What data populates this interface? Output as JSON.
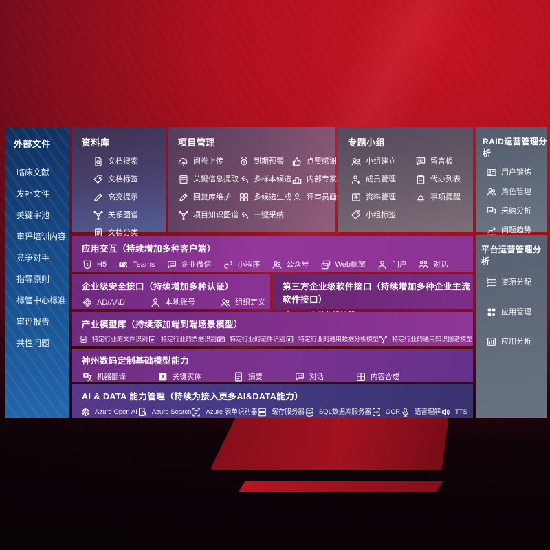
{
  "colors": {
    "accent_red": "#b50e1c",
    "sidebar_blue": "#1b62a8",
    "panel_purple": "#8a3294",
    "slate_grey": "#66707e",
    "indigo": "#3f3880"
  },
  "left_sidebar": {
    "title": "外部文件",
    "items": [
      "临床文献",
      "发补文件",
      "关键字池",
      "审评培训内容",
      "竞争对手",
      "指导原则",
      "标管中心标准",
      "审评报告",
      "共性问题"
    ]
  },
  "top_panels": [
    {
      "title": "资料库",
      "columns": [
        [
          {
            "label": "文档搜索",
            "icon": "doc-search"
          },
          {
            "label": "文档标签",
            "icon": "tag"
          },
          {
            "label": "高亮提示",
            "icon": "pen"
          },
          {
            "label": "关系图谱",
            "icon": "network"
          },
          {
            "label": "文档分类",
            "icon": "doc"
          }
        ]
      ]
    },
    {
      "title": "项目管理",
      "columns": [
        [
          {
            "label": "问卷上传",
            "icon": "cloud-up"
          },
          {
            "label": "关键信息提取",
            "icon": "form"
          },
          {
            "label": "回复库维护",
            "icon": "pen"
          },
          {
            "label": "项目知识图谱",
            "icon": "network"
          }
        ],
        [
          {
            "label": "到期预警",
            "icon": "alarm"
          },
          {
            "label": "多样本候选",
            "icon": "reply"
          },
          {
            "label": "多候选生成",
            "icon": "grid4"
          },
          {
            "label": "一键采纳",
            "icon": "reply"
          }
        ],
        [
          {
            "label": "点赞感谢",
            "icon": "thumb"
          },
          {
            "label": "内部专家排名",
            "icon": "podium"
          },
          {
            "label": "评审员画像",
            "icon": "person"
          }
        ]
      ]
    },
    {
      "title": "专题小组",
      "columns": [
        [
          {
            "label": "小组建立",
            "icon": "people"
          },
          {
            "label": "成员管理",
            "icon": "person-add"
          },
          {
            "label": "资料管理",
            "icon": "box"
          },
          {
            "label": "小组标签",
            "icon": "tag"
          }
        ],
        [
          {
            "label": "留言板",
            "icon": "bbs"
          },
          {
            "label": "代办列表",
            "icon": "clipboard"
          },
          {
            "label": "事项提醒",
            "icon": "bell"
          }
        ]
      ]
    }
  ],
  "right_panels": [
    {
      "title": "RAID运营管理分析",
      "items": [
        {
          "label": "用户锻炼",
          "icon": "card"
        },
        {
          "label": "角色管理",
          "icon": "people"
        },
        {
          "label": "采纳分析",
          "icon": "chat-qa"
        },
        {
          "label": "问题趋势",
          "icon": "chart"
        }
      ]
    },
    {
      "title": "平台运营管理分析",
      "items": [
        {
          "label": "资源分配",
          "icon": "list"
        },
        {
          "label": "应用管理",
          "icon": "grid-apps"
        },
        {
          "label": "应用分析",
          "icon": "chart-box"
        }
      ]
    }
  ],
  "rows": [
    {
      "title": "应用交互（持续增加多种客户端）",
      "items": [
        {
          "label": "H5",
          "icon": "h5"
        },
        {
          "label": "Teams",
          "icon": "teams"
        },
        {
          "label": "企业微信",
          "icon": "chat-dots"
        },
        {
          "label": "小程序",
          "icon": "miniprogram"
        },
        {
          "label": "公众号",
          "icon": "people"
        },
        {
          "label": "Web飘窗",
          "icon": "window"
        },
        {
          "label": "门户",
          "icon": "person"
        },
        {
          "label": "对话",
          "icon": "people-talk"
        }
      ]
    },
    {
      "title": "企业级安全接口（持续增加多种认证）",
      "items": [
        {
          "label": "AD/AAD",
          "icon": "diamond"
        },
        {
          "label": "本地账号",
          "icon": "person"
        },
        {
          "label": "组织定义",
          "icon": "people"
        }
      ]
    },
    {
      "title": "第三方企业级软件接口（持续增加多种企业主流软件接口）",
      "items": [
        {
          "label": "API自动化设计器",
          "icon": "gear"
        }
      ]
    },
    {
      "title": "产业模型库（持续添加端到端场景模型）",
      "items": [
        {
          "label": "特定行业的文件识别",
          "icon": "doc"
        },
        {
          "label": "特定行业的票据识别",
          "icon": "form"
        },
        {
          "label": "特定行业的证件识别",
          "icon": "card"
        },
        {
          "label": "特定行业的通用数据分析模型",
          "icon": "chart-box"
        },
        {
          "label": "特定行业的通用知识图谱模型",
          "icon": "network"
        }
      ]
    },
    {
      "title": "神州数码定制基础模型能力",
      "items": [
        {
          "label": "机器翻译",
          "icon": "translate"
        },
        {
          "label": "关键实体",
          "icon": "letter-a"
        },
        {
          "label": "摘要",
          "icon": "doc"
        },
        {
          "label": "对话",
          "icon": "chat-dots"
        },
        {
          "label": "内容合成",
          "icon": "puzzle"
        }
      ]
    },
    {
      "title": "AI & DATA 能力管理（持续为接入更多AI&DATA能力）",
      "items": [
        {
          "label": "Azure Open AI",
          "icon": "openai"
        },
        {
          "label": "Azure Search",
          "icon": "search"
        },
        {
          "label": "Azure 表单识别器",
          "icon": "scan-doc"
        },
        {
          "label": "缓存服务器",
          "icon": "server"
        },
        {
          "label": "SQL数据库服务器",
          "icon": "db"
        },
        {
          "label": "OCR",
          "icon": "ocr"
        },
        {
          "label": "语音理解",
          "icon": "mic"
        },
        {
          "label": "TTS",
          "icon": "tts"
        }
      ]
    }
  ]
}
